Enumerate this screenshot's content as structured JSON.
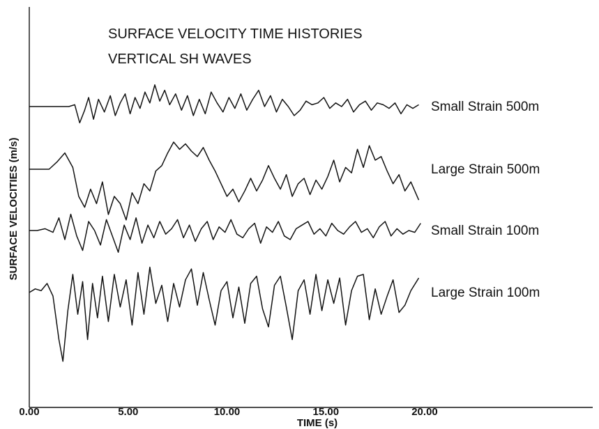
{
  "chart_data": {
    "type": "line",
    "title": "SURFACE VELOCITY TIME HISTORIES",
    "subtitle": "VERTICAL SH WAVES",
    "xlabel": "TIME (s)",
    "ylabel": "SURFACE VELOCITIES (m/s)",
    "xlim": [
      0,
      28.5
    ],
    "x_ticks": [
      "0.00",
      "5.00",
      "10.00",
      "15.00",
      "20.00"
    ],
    "x_tick_values": [
      0,
      5,
      10,
      15,
      20
    ],
    "y_axis_offset_traces": true,
    "grid": false,
    "legend": "right-of-traces",
    "series": [
      {
        "name": "Small Strain 500m",
        "baseline": 4,
        "t": [
          0.0,
          0.5,
          1.0,
          1.5,
          2.0,
          2.3,
          2.55,
          2.8,
          3.0,
          3.25,
          3.5,
          3.8,
          4.1,
          4.35,
          4.6,
          4.85,
          5.1,
          5.35,
          5.6,
          5.85,
          6.1,
          6.35,
          6.6,
          6.85,
          7.1,
          7.4,
          7.7,
          8.0,
          8.3,
          8.6,
          8.9,
          9.2,
          9.5,
          9.8,
          10.1,
          10.4,
          10.7,
          11.0,
          11.3,
          11.6,
          11.9,
          12.2,
          12.5,
          12.8,
          13.1,
          13.4,
          13.7,
          14.0,
          14.3,
          14.6,
          14.9,
          15.2,
          15.5,
          15.8,
          16.1,
          16.4,
          16.7,
          17.0,
          17.3,
          17.6,
          17.9,
          18.2,
          18.5,
          18.8,
          19.1,
          19.4,
          19.7
        ],
        "v": [
          0.0,
          0.0,
          0.0,
          0.0,
          0.0,
          0.05,
          -0.45,
          -0.1,
          0.25,
          -0.35,
          0.2,
          -0.15,
          0.3,
          -0.25,
          0.1,
          0.35,
          -0.2,
          0.25,
          -0.05,
          0.4,
          0.1,
          0.6,
          0.15,
          0.45,
          0.05,
          0.35,
          -0.1,
          0.3,
          -0.25,
          0.2,
          -0.2,
          0.4,
          0.1,
          -0.15,
          0.25,
          -0.05,
          0.35,
          -0.1,
          0.2,
          0.45,
          0.0,
          0.3,
          -0.15,
          0.2,
          0.0,
          -0.25,
          -0.1,
          0.15,
          0.05,
          0.1,
          0.25,
          -0.05,
          0.1,
          0.0,
          0.2,
          -0.15,
          0.05,
          0.15,
          -0.1,
          0.1,
          0.05,
          -0.05,
          0.1,
          -0.2,
          0.05,
          -0.05,
          0.05
        ]
      },
      {
        "name": "Large Strain 500m",
        "baseline": 3,
        "t": [
          0.0,
          0.5,
          1.0,
          1.4,
          1.8,
          2.2,
          2.5,
          2.8,
          3.1,
          3.4,
          3.7,
          4.0,
          4.3,
          4.6,
          4.9,
          5.2,
          5.5,
          5.8,
          6.1,
          6.4,
          6.7,
          7.0,
          7.3,
          7.6,
          7.9,
          8.2,
          8.5,
          8.8,
          9.1,
          9.4,
          9.7,
          10.0,
          10.3,
          10.6,
          10.9,
          11.2,
          11.5,
          11.8,
          12.1,
          12.4,
          12.7,
          13.0,
          13.3,
          13.6,
          13.9,
          14.2,
          14.5,
          14.8,
          15.1,
          15.4,
          15.7,
          16.0,
          16.3,
          16.6,
          16.9,
          17.2,
          17.5,
          17.8,
          18.1,
          18.4,
          18.7,
          19.0,
          19.3,
          19.7
        ],
        "v": [
          0.0,
          0.0,
          0.0,
          0.2,
          0.45,
          0.05,
          -0.75,
          -1.05,
          -0.55,
          -0.95,
          -0.35,
          -1.25,
          -0.75,
          -0.95,
          -1.4,
          -0.65,
          -0.95,
          -0.4,
          -0.6,
          -0.05,
          0.1,
          0.45,
          0.75,
          0.55,
          0.7,
          0.5,
          0.35,
          0.6,
          0.25,
          -0.05,
          -0.4,
          -0.75,
          -0.55,
          -0.9,
          -0.6,
          -0.25,
          -0.6,
          -0.3,
          0.1,
          -0.25,
          -0.55,
          -0.15,
          -0.75,
          -0.4,
          -0.25,
          -0.7,
          -0.3,
          -0.55,
          -0.2,
          0.25,
          -0.35,
          0.05,
          -0.1,
          0.55,
          0.05,
          0.65,
          0.25,
          0.35,
          -0.05,
          -0.4,
          -0.15,
          -0.6,
          -0.35,
          -0.85
        ]
      },
      {
        "name": "Small Strain 100m",
        "baseline": 2,
        "t": [
          0.0,
          0.4,
          0.8,
          1.2,
          1.5,
          1.8,
          2.1,
          2.4,
          2.7,
          3.0,
          3.3,
          3.6,
          3.9,
          4.2,
          4.5,
          4.8,
          5.1,
          5.4,
          5.7,
          6.0,
          6.3,
          6.6,
          6.9,
          7.2,
          7.5,
          7.8,
          8.1,
          8.4,
          8.7,
          9.0,
          9.3,
          9.6,
          9.9,
          10.2,
          10.5,
          10.8,
          11.1,
          11.4,
          11.7,
          12.0,
          12.3,
          12.6,
          12.9,
          13.2,
          13.5,
          13.8,
          14.1,
          14.4,
          14.7,
          15.0,
          15.3,
          15.6,
          15.9,
          16.2,
          16.5,
          16.8,
          17.1,
          17.4,
          17.7,
          18.0,
          18.3,
          18.6,
          18.9,
          19.2,
          19.5,
          19.8
        ],
        "v": [
          0.0,
          0.0,
          0.05,
          -0.05,
          0.35,
          -0.25,
          0.45,
          -0.15,
          -0.55,
          0.25,
          0.0,
          -0.4,
          0.3,
          -0.15,
          -0.6,
          0.15,
          -0.25,
          0.35,
          -0.35,
          0.15,
          -0.2,
          0.25,
          -0.1,
          0.05,
          0.3,
          -0.2,
          0.15,
          -0.3,
          0.05,
          0.25,
          -0.25,
          0.1,
          -0.05,
          0.3,
          -0.1,
          -0.2,
          0.05,
          0.2,
          -0.35,
          0.1,
          -0.05,
          0.25,
          -0.15,
          -0.25,
          0.05,
          0.15,
          0.25,
          -0.1,
          0.05,
          -0.15,
          0.2,
          0.0,
          -0.1,
          0.1,
          0.25,
          -0.05,
          0.05,
          -0.2,
          0.1,
          0.25,
          -0.15,
          0.05,
          -0.1,
          0.0,
          -0.05,
          0.2
        ]
      },
      {
        "name": "Large Strain 100m",
        "baseline": 1,
        "t": [
          0.0,
          0.3,
          0.6,
          0.9,
          1.2,
          1.5,
          1.7,
          1.95,
          2.2,
          2.45,
          2.7,
          2.95,
          3.2,
          3.45,
          3.7,
          4.0,
          4.3,
          4.6,
          4.9,
          5.2,
          5.5,
          5.8,
          6.1,
          6.4,
          6.7,
          7.0,
          7.3,
          7.6,
          7.9,
          8.2,
          8.5,
          8.8,
          9.1,
          9.4,
          9.7,
          10.0,
          10.3,
          10.6,
          10.9,
          11.2,
          11.5,
          11.8,
          12.1,
          12.4,
          12.7,
          13.0,
          13.3,
          13.6,
          13.9,
          14.2,
          14.5,
          14.8,
          15.1,
          15.4,
          15.7,
          16.0,
          16.3,
          16.6,
          16.9,
          17.2,
          17.5,
          17.8,
          18.1,
          18.4,
          18.7,
          19.0,
          19.3,
          19.7
        ],
        "v": [
          0.0,
          0.1,
          0.05,
          0.25,
          -0.1,
          -1.3,
          -1.9,
          -0.5,
          0.5,
          -0.6,
          0.3,
          -1.3,
          0.25,
          -0.7,
          0.45,
          -0.8,
          0.5,
          -0.4,
          0.35,
          -0.9,
          0.55,
          -0.6,
          0.7,
          -0.3,
          0.2,
          -0.8,
          0.25,
          -0.4,
          0.35,
          0.65,
          -0.35,
          0.55,
          -0.2,
          -0.9,
          0.05,
          0.3,
          -0.7,
          0.15,
          -0.85,
          0.25,
          0.45,
          -0.45,
          -0.95,
          0.2,
          0.45,
          -0.4,
          -1.3,
          0.05,
          0.35,
          -0.6,
          0.5,
          -0.5,
          0.35,
          -0.3,
          0.4,
          -0.9,
          0.05,
          0.45,
          0.5,
          -0.75,
          0.1,
          -0.6,
          -0.1,
          0.35,
          -0.55,
          -0.35,
          0.05,
          0.4
        ]
      }
    ]
  }
}
